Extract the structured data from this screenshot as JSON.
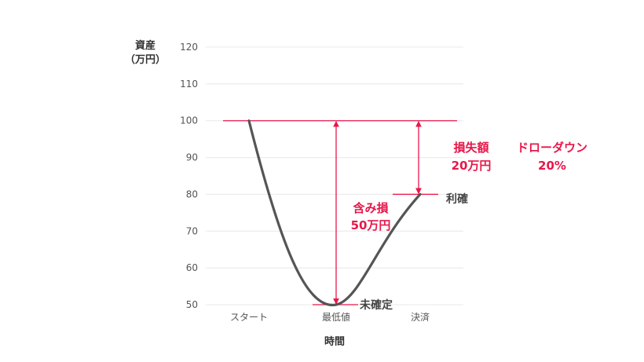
{
  "chart_data": {
    "type": "line",
    "ylabel_line1": "資産",
    "ylabel_line2": "（万円）",
    "xlabel": "時間",
    "ylim": [
      50,
      120
    ],
    "yticks": [
      50,
      60,
      70,
      80,
      90,
      100,
      110,
      120
    ],
    "categories": [
      "スタート",
      "最低値",
      "決済"
    ],
    "series": [
      {
        "x": [
          0,
          1,
          2
        ],
        "values": [
          100,
          50,
          80
        ]
      }
    ],
    "grid": true,
    "colors": {
      "line": "#555555",
      "accent": "#e8174a",
      "grid": "#e8e8e8"
    },
    "annotations": {
      "unrealized_loss_line1": "含み損",
      "unrealized_loss_line2": "50万円",
      "loss_amount_line1": "損失額",
      "loss_amount_line2": "20万円",
      "drawdown_line1": "ドローダウン",
      "drawdown_line2": "20%",
      "take_profit": "利確",
      "unconfirmed": "未確定"
    }
  }
}
